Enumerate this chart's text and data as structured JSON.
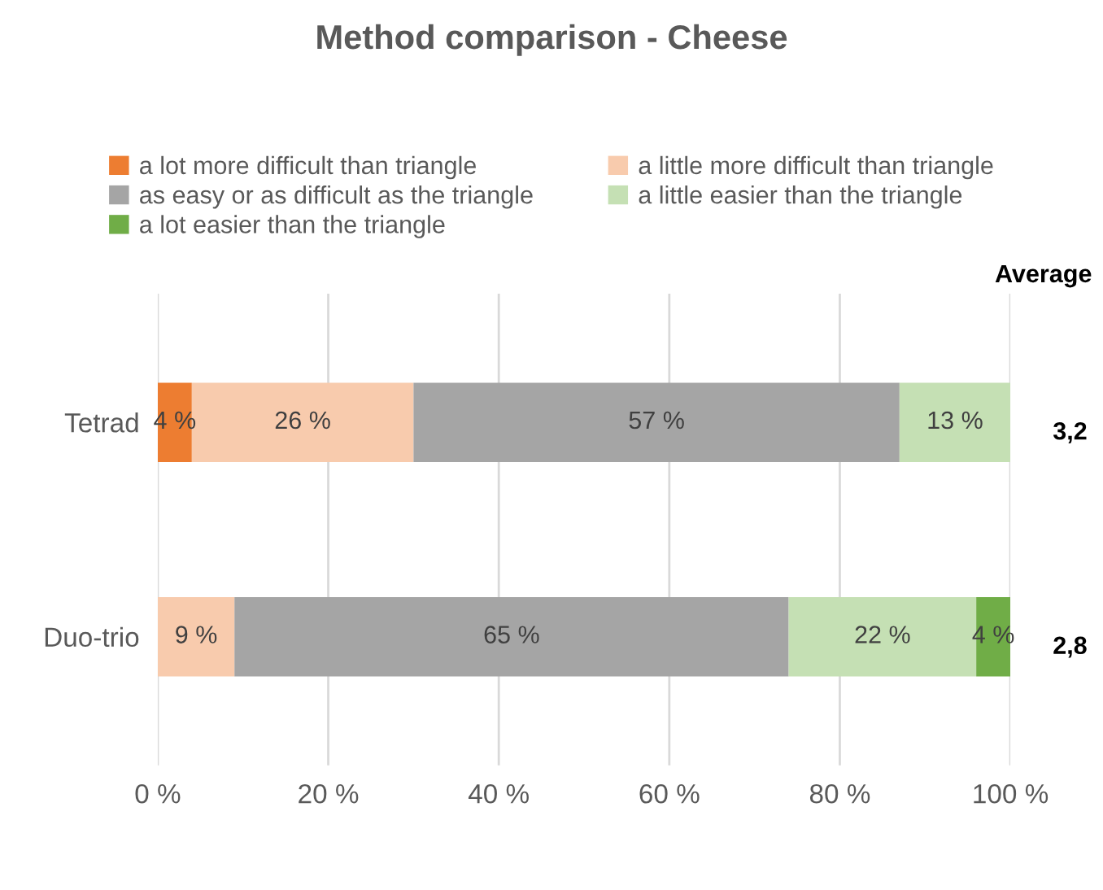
{
  "chart_data": {
    "type": "bar",
    "orientation": "horizontal",
    "stacked": true,
    "title": "Method comparison - Cheese",
    "categories": [
      "Tetrad",
      "Duo-trio"
    ],
    "series": [
      {
        "name": "a lot more difficult than triangle",
        "color": "#ed7d31",
        "values": [
          4,
          0
        ],
        "value_labels": [
          "4 %",
          null
        ]
      },
      {
        "name": "a little more difficult than triangle",
        "color": "#f8cbad",
        "values": [
          26,
          9
        ],
        "value_labels": [
          "26 %",
          "9 %"
        ]
      },
      {
        "name": "as easy or as difficult as the triangle",
        "color": "#a5a5a5",
        "values": [
          57,
          65
        ],
        "value_labels": [
          "57 %",
          "65 %"
        ]
      },
      {
        "name": "a little easier than the triangle",
        "color": "#c5e0b4",
        "values": [
          13,
          22
        ],
        "value_labels": [
          "13 %",
          "22 %"
        ]
      },
      {
        "name": "a lot easier than the triangle",
        "color": "#70ad47",
        "values": [
          0,
          4
        ],
        "value_labels": [
          null,
          "4 %"
        ]
      }
    ],
    "xlim": [
      0,
      100
    ],
    "xticks": [
      {
        "value": 0,
        "label": "0 %"
      },
      {
        "value": 20,
        "label": "20 %"
      },
      {
        "value": 40,
        "label": "40 %"
      },
      {
        "value": 60,
        "label": "60 %"
      },
      {
        "value": 80,
        "label": "80 %"
      },
      {
        "value": 100,
        "label": "100 %"
      }
    ],
    "grid": "x",
    "legend": "top",
    "annotations": [
      "Average",
      "3,2",
      "2,8"
    ]
  }
}
